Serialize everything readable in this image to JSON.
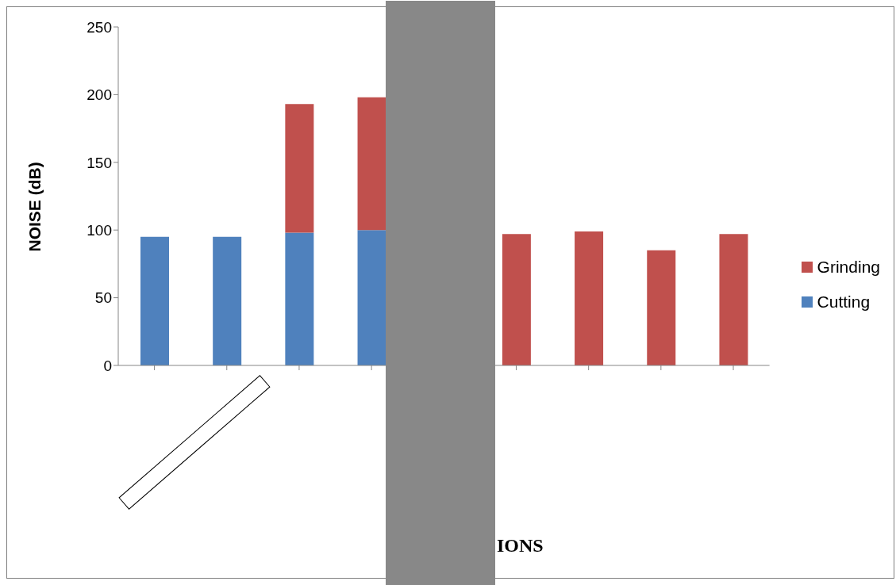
{
  "chart_data": {
    "type": "bar",
    "stacked": true,
    "annotations": [
      "IONS"
    ],
    "ylabel": "NOISE  (dB)",
    "categories": [
      null,
      null,
      null,
      null,
      null,
      null,
      null,
      null,
      null
    ],
    "series": [
      {
        "name": "Cutting",
        "color": "#4f81bd",
        "values": [
          95,
          95,
          98,
          100,
          null,
          null,
          null,
          null,
          null
        ]
      },
      {
        "name": "Grinding",
        "color": "#c0504d",
        "values": [
          null,
          null,
          95,
          98,
          null,
          97,
          99,
          85,
          97
        ]
      }
    ],
    "ylim": [
      0,
      250
    ],
    "yticks": [
      0,
      50,
      100,
      150,
      200,
      250
    ],
    "legend": "right"
  }
}
